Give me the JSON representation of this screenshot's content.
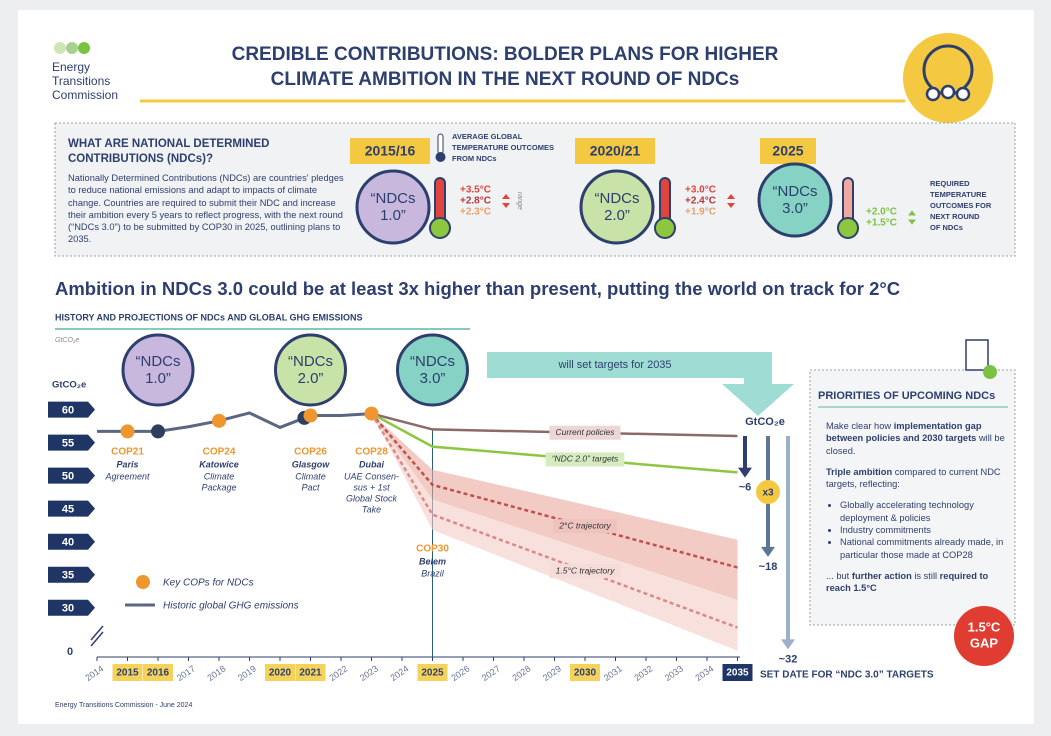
{
  "header": {
    "logo": [
      "Energy",
      "Transitions",
      "Commission"
    ],
    "title": [
      "CREDIBLE CONTRIBUTIONS: BOLDER PLANS FOR HIGHER",
      "CLIMATE AMBITION IN THE NEXT ROUND OF NDCs"
    ]
  },
  "ndc_box": {
    "heading": [
      "WHAT ARE NATIONAL DETERMINED",
      "CONTRIBUTIONS (NDCs)?"
    ],
    "body": "Nationally Determined Contributions (NDCs) are countries' pledges to reduce national emissions and adapt to impacts of climate change. Countries are required to submit their NDC and increase their ambition every 5 years to reflect progress, with the next round (“NDCs 3.0”) to be submitted by COP30 in 2025, outlining plans to 2035.",
    "temp_label": [
      "AVERAGE GLOBAL",
      "TEMPERATURE OUTCOMES",
      "FROM NDCs"
    ],
    "range_label": "range",
    "required_label": [
      "REQUIRED",
      "TEMPERATURE",
      "OUTCOMES FOR",
      "NEXT ROUND",
      "OF NDCs"
    ],
    "rounds": [
      {
        "year": "2015/16",
        "badge": [
          "“NDCs",
          "1.0”"
        ],
        "color": "#c9b8de",
        "temps": [
          "+3.5°C",
          "+2.8°C",
          "+2.3°C"
        ],
        "temp_colors": [
          "#e0443c",
          "#b5383a",
          "#e8a066"
        ]
      },
      {
        "year": "2020/21",
        "badge": [
          "“NDCs",
          "2.0”"
        ],
        "color": "#c8e2a8",
        "temps": [
          "+3.0°C",
          "+2.4°C",
          "+1.9°C"
        ],
        "temp_colors": [
          "#e0443c",
          "#b5383a",
          "#e8a066"
        ]
      },
      {
        "year": "2025",
        "badge": [
          "“NDCs",
          "3.0”"
        ],
        "color": "#86d2c4",
        "temps": [
          "+2.0°C",
          "+1.5°C"
        ],
        "temp_colors": [
          "#7cc242",
          "#7cc242"
        ]
      }
    ]
  },
  "chart_data": {
    "type": "line",
    "title": "Ambition in NDCs 3.0 could be at least 3x higher than present, putting the world on track for 2°C",
    "subtitle": "HISTORY AND PROJECTIONS OF NDCs AND GLOBAL GHG EMISSIONS",
    "y_label": "GtCO₂e",
    "y_unit_small": "GtCO₂e",
    "xlim": [
      2014,
      2035
    ],
    "xticks": [
      2014,
      2015,
      2016,
      2017,
      2018,
      2019,
      2020,
      2021,
      2022,
      2023,
      2024,
      2025,
      2026,
      2027,
      2028,
      2029,
      2030,
      2031,
      2032,
      2033,
      2034,
      2035
    ],
    "highlight_years": [
      2015,
      2016,
      2020,
      2021,
      2025,
      2030
    ],
    "target_year": 2035,
    "ylim": [
      23,
      61
    ],
    "yticks": [
      0,
      30,
      35,
      40,
      45,
      50,
      55,
      60
    ],
    "axis_break": true,
    "series": [
      {
        "name": "Historic global GHG emissions",
        "color": "#5a6782",
        "x": [
          2014,
          2015,
          2016,
          2017,
          2018,
          2019,
          2020,
          2021,
          2022,
          2023
        ],
        "values": [
          56.7,
          56.7,
          56.7,
          57.4,
          58.3,
          59.5,
          57.3,
          59.1,
          59.1,
          59.4
        ]
      }
    ],
    "projections": [
      {
        "name": "Current policies",
        "color": "#8b6a6a",
        "label_fill": "#ecd6d6",
        "dashed": false,
        "x": [
          2023,
          2025,
          2035
        ],
        "values": [
          59.4,
          57,
          56
        ]
      },
      {
        "name": "“NDC 2.0” targets",
        "color": "#8dc63f",
        "label_fill": "#d6ecc0",
        "dashed": false,
        "x": [
          2023,
          2025,
          2035
        ],
        "values": [
          59.4,
          54.4,
          50.5
        ]
      },
      {
        "name": "2°C trajectory",
        "color": "#c0504d",
        "label_fill": "#efc3bd",
        "dashed": true,
        "band_color": "#e9a99f",
        "x": [
          2023,
          2025,
          2035
        ],
        "values": [
          59.4,
          48.6,
          36.1
        ],
        "low": [
          59.4,
          46.4,
          31.2
        ],
        "high": [
          59.4,
          50.9,
          40.3
        ]
      },
      {
        "name": "1.5°C trajectory",
        "color": "#d98a86",
        "label_fill": "#f6dcd8",
        "dashed": true,
        "band_color": "#f3cbc5",
        "x": [
          2023,
          2025,
          2035
        ],
        "values": [
          59.4,
          44.1,
          27
        ],
        "low": [
          59.4,
          41.8,
          23.5
        ],
        "high": [
          59.4,
          46.4,
          31.2
        ]
      }
    ],
    "cops": [
      {
        "x": 2015,
        "name": "COP21",
        "place": "Paris",
        "note": [
          "Agreement"
        ]
      },
      {
        "x": 2018,
        "name": "COP24",
        "place": "Katowice",
        "note": [
          "Climate",
          "Package"
        ]
      },
      {
        "x": 2021,
        "name": "COP26",
        "place": "Glasgow",
        "note": [
          "Climate",
          "Pact"
        ]
      },
      {
        "x": 2023,
        "name": "COP28",
        "place": "Dubai",
        "note": [
          "UAE Consen-",
          "sus + 1st",
          "Global Stock",
          "Take"
        ]
      },
      {
        "x": 2025,
        "name": "COP30",
        "place": "Belem",
        "note": [
          "Brazil"
        ]
      }
    ],
    "cop_legend": "Key COPs for NDCs",
    "cop_color": "#f0962f",
    "ndc_points": [
      2016,
      2020.8
    ],
    "badges": [
      {
        "x": 2016,
        "text": [
          "“NDCs",
          "1.0”"
        ],
        "color": "#c9b8de"
      },
      {
        "x": 2021,
        "text": [
          "“NDCs",
          "2.0”"
        ],
        "color": "#c8e2a8"
      },
      {
        "x": 2025,
        "text": [
          "“NDCs",
          "3.0”"
        ],
        "color": "#86d2c4"
      }
    ],
    "banner": "will set targets for 2035",
    "gap_unit": "GtCO₂e",
    "gap_values": [
      6,
      18,
      32
    ],
    "gap_labels": [
      "~6",
      "~18",
      "~32"
    ],
    "gap_colors": [
      "#2d3f6e",
      "#5c7696",
      "#9cb0cc"
    ],
    "multiplier": "x3",
    "x_note": "SET DATE FOR “NDC 3.0” TARGETS"
  },
  "priorities": {
    "title": "PRIORITIES OF UPCOMING NDCs",
    "p1": [
      {
        "text": "Make clear how "
      },
      {
        "text": "implementation gap between policies and 2030 targets",
        "bold": true
      },
      {
        "text": " will be closed."
      }
    ],
    "p2": [
      {
        "text": "Triple ambition",
        "bold": true
      },
      {
        "text": " compared to current NDC targets, reflecting:"
      }
    ],
    "bullets": [
      "Globally accelerating technology deployment & policies",
      "Industry commitments",
      "National commitments already made, in particular those made at COP28"
    ],
    "p3": [
      {
        "text": "... but "
      },
      {
        "text": "further action",
        "bold": true
      },
      {
        "text": " is still "
      },
      {
        "text": "required to reach 1.5°C",
        "bold": true
      }
    ]
  },
  "gap_badge": [
    "1.5°C",
    "GAP"
  ],
  "footer": "Energy Transitions Commission - June 2024"
}
